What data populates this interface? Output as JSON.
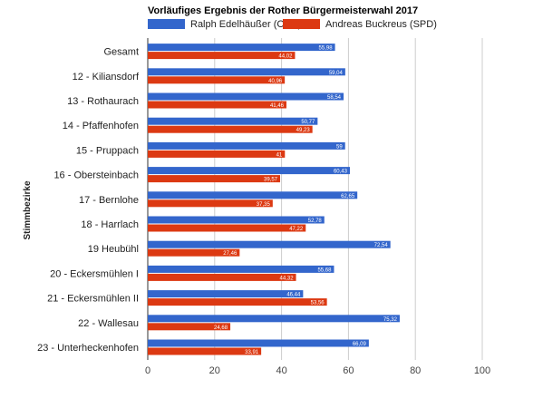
{
  "chart_data": {
    "type": "bar",
    "orientation": "horizontal",
    "title": "Vorläufiges Ergebnis der Rother Bürgermeisterwahl 2017",
    "ylabel": "Stimmbezirke",
    "xlabel": "",
    "xlim": [
      0,
      100
    ],
    "xticks": [
      0,
      20,
      40,
      60,
      80,
      100
    ],
    "grid": true,
    "legend": "top",
    "categories": [
      "Gesamt",
      "12 - Kiliansdorf",
      "13 - Rothaurach",
      "14 - Pfaffenhofen",
      "15 - Pruppach",
      "16 - Obersteinbach",
      "17 - Bernlohe",
      "18 - Harrlach",
      "19 Heubühl",
      "20 - Eckersmühlen I",
      "21 - Eckersmühlen II",
      "22 - Wallesau",
      "23 - Unterheckenhofen"
    ],
    "series": [
      {
        "name": "Ralph Edelhäußer (CSU)",
        "color": "#3366cc",
        "values": [
          55.98,
          59.04,
          58.54,
          50.77,
          59,
          60.43,
          62.65,
          52.78,
          72.54,
          55.68,
          46.44,
          75.32,
          66.09
        ],
        "labels": [
          "55,98",
          "59,04",
          "58,54",
          "50,77",
          "59",
          "60,43",
          "62,65",
          "52,78",
          "72,54",
          "55,68",
          "46,44",
          "75,32",
          "66,09"
        ]
      },
      {
        "name": "Andreas Buckreus (SPD)",
        "color": "#dc3912",
        "values": [
          44.02,
          40.96,
          41.46,
          49.23,
          41,
          39.57,
          37.35,
          47.22,
          27.46,
          44.32,
          53.56,
          24.68,
          33.91
        ],
        "labels": [
          "44,02",
          "40,96",
          "41,46",
          "49,23",
          "41",
          "39,57",
          "37,35",
          "47,22",
          "27,46",
          "44,32",
          "53,56",
          "24,68",
          "33,91"
        ]
      }
    ]
  }
}
